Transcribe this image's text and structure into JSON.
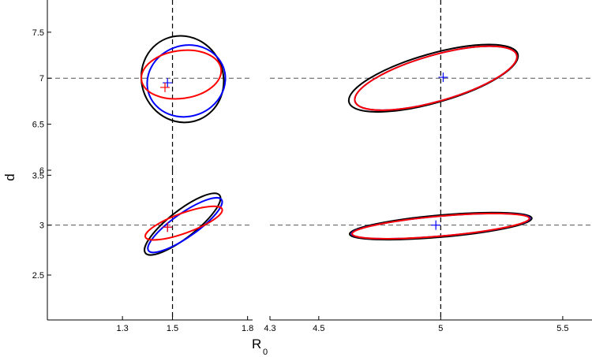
{
  "chart_data": {
    "type": "scatter",
    "description_axes": {
      "xlabel_main": "R",
      "xlabel_sub": "0",
      "ylabel": "d"
    },
    "colors": {
      "black": "#000000",
      "red": "#ff0000",
      "blue": "#0000ff",
      "refline": "#555555"
    },
    "panels": [
      {
        "name": "top-left",
        "xlim": [
          1.0,
          1.82
        ],
        "ylim": [
          6.0,
          7.85
        ],
        "xticks": [],
        "yticks": [
          {
            "value": 6,
            "label": "6"
          },
          {
            "value": 6.5,
            "label": "6.5"
          },
          {
            "value": 7,
            "label": "7"
          },
          {
            "value": 7.5,
            "label": "7.5"
          }
        ],
        "ref": {
          "x": 1.5,
          "y": 7.0
        },
        "ellipses": [
          {
            "series": "black",
            "cx": 1.54,
            "cy": 6.99,
            "rx": 0.2,
            "ry": 0.95,
            "angle": -22
          },
          {
            "series": "blue",
            "cx": 1.555,
            "cy": 6.97,
            "rx": 0.19,
            "ry": 0.77,
            "angle": -20
          },
          {
            "series": "red",
            "cx": 1.535,
            "cy": 7.04,
            "rx": 0.195,
            "ry": 0.52,
            "angle": -8
          }
        ],
        "markers": [
          {
            "series": "blue",
            "x": 1.48,
            "y": 6.95
          },
          {
            "series": "red",
            "x": 1.47,
            "y": 6.9
          }
        ]
      },
      {
        "name": "bottom-left",
        "xlim": [
          1.0,
          1.82
        ],
        "ylim": [
          2.05,
          3.55
        ],
        "xticks": [
          {
            "value": 1.3,
            "label": "1.3"
          },
          {
            "value": 1.5,
            "label": "1.5"
          },
          {
            "value": 1.8,
            "label": "1.8"
          }
        ],
        "yticks": [
          {
            "value": 2.5,
            "label": "2.5"
          },
          {
            "value": 3,
            "label": "3"
          },
          {
            "value": 3.5,
            "label": "3.5"
          }
        ],
        "ref": {
          "x": 1.5,
          "y": 3.0
        },
        "ellipses": [
          {
            "series": "black",
            "cx": 1.54,
            "cy": 3.01,
            "rx": 0.25,
            "ry": 0.27,
            "angle": -38
          },
          {
            "series": "blue",
            "cx": 1.55,
            "cy": 3.0,
            "rx": 0.23,
            "ry": 0.24,
            "angle": -35
          },
          {
            "series": "red",
            "cx": 1.545,
            "cy": 3.02,
            "rx": 0.2,
            "ry": 0.2,
            "angle": -20
          }
        ],
        "markers": [
          {
            "series": "blue",
            "x": 1.48,
            "y": 2.98
          },
          {
            "series": "red",
            "x": 1.48,
            "y": 2.98
          }
        ]
      },
      {
        "name": "top-right",
        "xlim": [
          4.3,
          5.62
        ],
        "ylim": [
          6.0,
          7.85
        ],
        "xticks": [],
        "yticks": [],
        "ref": {
          "x": 5.0,
          "y": 7.0
        },
        "ellipses": [
          {
            "series": "black",
            "cx": 4.97,
            "cy": 7.0,
            "rx": 0.59,
            "ry": 0.53,
            "angle": -16
          },
          {
            "series": "blue",
            "cx": 4.98,
            "cy": 7.0,
            "rx": 0.56,
            "ry": 0.5,
            "angle": -16
          },
          {
            "series": "red",
            "cx": 4.98,
            "cy": 7.0,
            "rx": 0.56,
            "ry": 0.5,
            "angle": -16
          }
        ],
        "markers": [
          {
            "series": "blue",
            "x": 5.01,
            "y": 7.01
          }
        ]
      },
      {
        "name": "bottom-right",
        "xlim": [
          4.3,
          5.62
        ],
        "ylim": [
          2.05,
          3.55
        ],
        "xticks": [
          {
            "value": 4.3,
            "label": "4.3"
          },
          {
            "value": 4.5,
            "label": "4.5"
          },
          {
            "value": 5,
            "label": "5"
          },
          {
            "value": 5.5,
            "label": "5.5"
          }
        ],
        "yticks": [],
        "ref": {
          "x": 5.0,
          "y": 3.0
        },
        "ellipses": [
          {
            "series": "black",
            "cx": 5.0,
            "cy": 2.99,
            "rx": 0.62,
            "ry": 0.22,
            "angle": -5
          },
          {
            "series": "blue",
            "cx": 5.0,
            "cy": 2.99,
            "rx": 0.605,
            "ry": 0.2,
            "angle": -5
          },
          {
            "series": "red",
            "cx": 5.0,
            "cy": 2.99,
            "rx": 0.6,
            "ry": 0.2,
            "angle": -5
          }
        ],
        "markers": [
          {
            "series": "blue",
            "x": 4.98,
            "y": 3.0
          }
        ]
      }
    ]
  }
}
